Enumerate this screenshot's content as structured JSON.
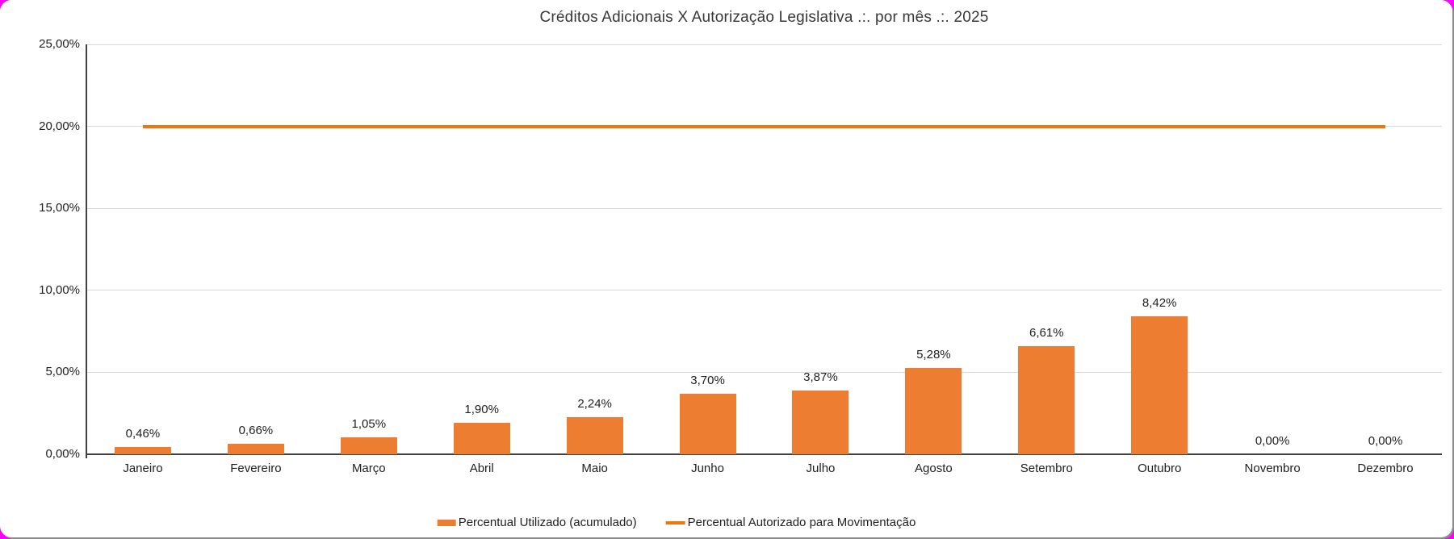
{
  "colors": {
    "page_background": "#FF00FF",
    "card_background": "#FFFFFF",
    "card_shadow": "#8C8C8C",
    "grid": "#D9D9D9",
    "axis": "#404040",
    "label_text": "#212121",
    "title_text": "#383838",
    "bar": "#ED7D31",
    "line": "#F0750E"
  },
  "chart_data": {
    "type": "bar",
    "title": "Créditos Adicionais X Autorização Legislativa .:. por mês .:. 2025",
    "categories": [
      "Janeiro",
      "Fevereiro",
      "Março",
      "Abril",
      "Maio",
      "Junho",
      "Julho",
      "Agosto",
      "Setembro",
      "Outubro",
      "Novembro",
      "Dezembro"
    ],
    "series": [
      {
        "name": "Percentual Utilizado (acumulado)",
        "type": "bar",
        "color": "#ED7D31",
        "values": [
          0.46,
          0.66,
          1.05,
          1.9,
          2.24,
          3.7,
          3.87,
          5.28,
          6.61,
          8.42,
          0.0,
          0.0
        ],
        "labels": [
          "0,46%",
          "0,66%",
          "1,05%",
          "1,90%",
          "2,24%",
          "3,70%",
          "3,87%",
          "5,28%",
          "6,61%",
          "8,42%",
          "0,00%",
          "0,00%"
        ]
      },
      {
        "name": "Percentual Autorizado para Movimentação",
        "type": "line",
        "color": "#F0750E",
        "constant_value": 20.0
      }
    ],
    "y_axis": {
      "min": 0,
      "max": 25,
      "tick_values": [
        0,
        5,
        10,
        15,
        20,
        25
      ],
      "tick_labels": [
        "0,00%",
        "5,00%",
        "10,00%",
        "15,00%",
        "20,00%",
        "25,00%"
      ]
    },
    "grid": true,
    "legend_position": "bottom"
  }
}
